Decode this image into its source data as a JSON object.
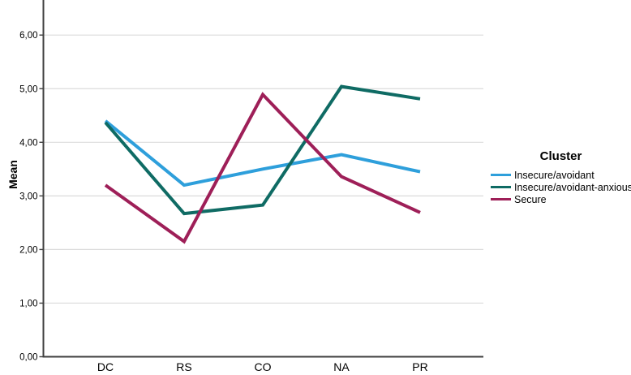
{
  "figure": {
    "background": "#FFFFFF"
  },
  "chart_data": {
    "type": "line",
    "title": "",
    "xlabel": "",
    "ylabel": "Mean",
    "categories": [
      "DC",
      "RS",
      "CO",
      "NA",
      "PR"
    ],
    "series": [
      {
        "name": "Insecure/avoidant",
        "color": "#2E9FDB",
        "values": [
          4.4,
          3.2,
          3.5,
          3.77,
          3.45
        ]
      },
      {
        "name": "Insecure/avoidant-anxious",
        "color": "#0F6B64",
        "values": [
          4.37,
          2.67,
          2.83,
          5.04,
          4.81
        ]
      },
      {
        "name": "Secure",
        "color": "#9E1F58",
        "values": [
          3.2,
          2.15,
          4.89,
          3.36,
          2.69
        ]
      }
    ],
    "legend": {
      "title": "Cluster",
      "position": "right"
    },
    "y_axis": {
      "min": 0,
      "max": 6.65,
      "tick_step": 1,
      "tick_labels": [
        "0,00",
        "1,00",
        "2,00",
        "3,00",
        "4,00",
        "5,00",
        "6,00"
      ]
    },
    "grid": true,
    "colors": {
      "gridline": "#DBDBDB",
      "axis": "#3F3F3F",
      "tick_label": "#000000"
    }
  }
}
